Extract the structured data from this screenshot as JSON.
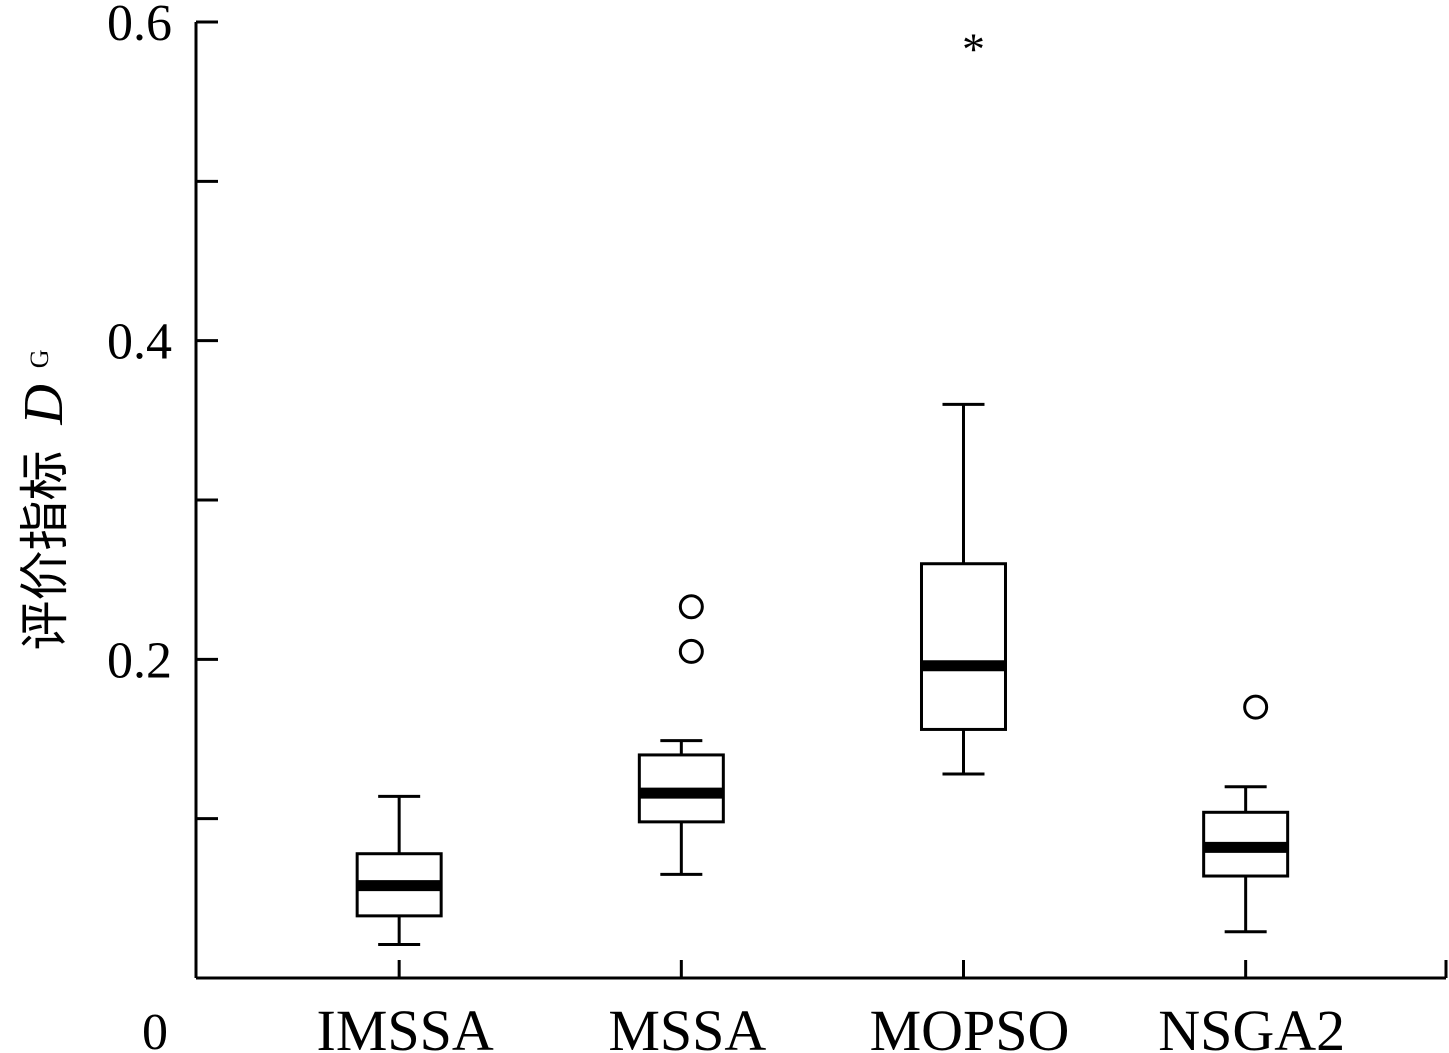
{
  "chart_data": {
    "type": "boxplot",
    "title": "",
    "xlabel": "",
    "ylabel": {
      "text": "评价指标",
      "variable": "D",
      "subscript": "G"
    },
    "ylim": [
      0,
      0.6
    ],
    "y_tick_labels": [
      "0",
      "0.2",
      "0.4",
      "0.6"
    ],
    "categories": [
      "IMSSA",
      "MSSA",
      "MOPSO",
      "NSGA2"
    ],
    "boxes": [
      {
        "category": "IMSSA",
        "whisker_low": 0.021,
        "q1": 0.039,
        "median": 0.058,
        "q3": 0.078,
        "whisker_high": 0.114,
        "outliers": [],
        "extremes": []
      },
      {
        "category": "MSSA",
        "whisker_low": 0.065,
        "q1": 0.098,
        "median": 0.116,
        "q3": 0.14,
        "whisker_high": 0.149,
        "outliers": [
          0.205,
          0.233
        ],
        "extremes": []
      },
      {
        "category": "MOPSO",
        "whisker_low": 0.128,
        "q1": 0.156,
        "median": 0.196,
        "q3": 0.26,
        "whisker_high": 0.36,
        "outliers": [],
        "extremes": [
          0.587
        ]
      },
      {
        "category": "NSGA2",
        "whisker_low": 0.029,
        "q1": 0.064,
        "median": 0.082,
        "q3": 0.104,
        "whisker_high": 0.12,
        "outliers": [
          0.17
        ],
        "extremes": []
      }
    ],
    "grid": false,
    "legend": "none"
  }
}
